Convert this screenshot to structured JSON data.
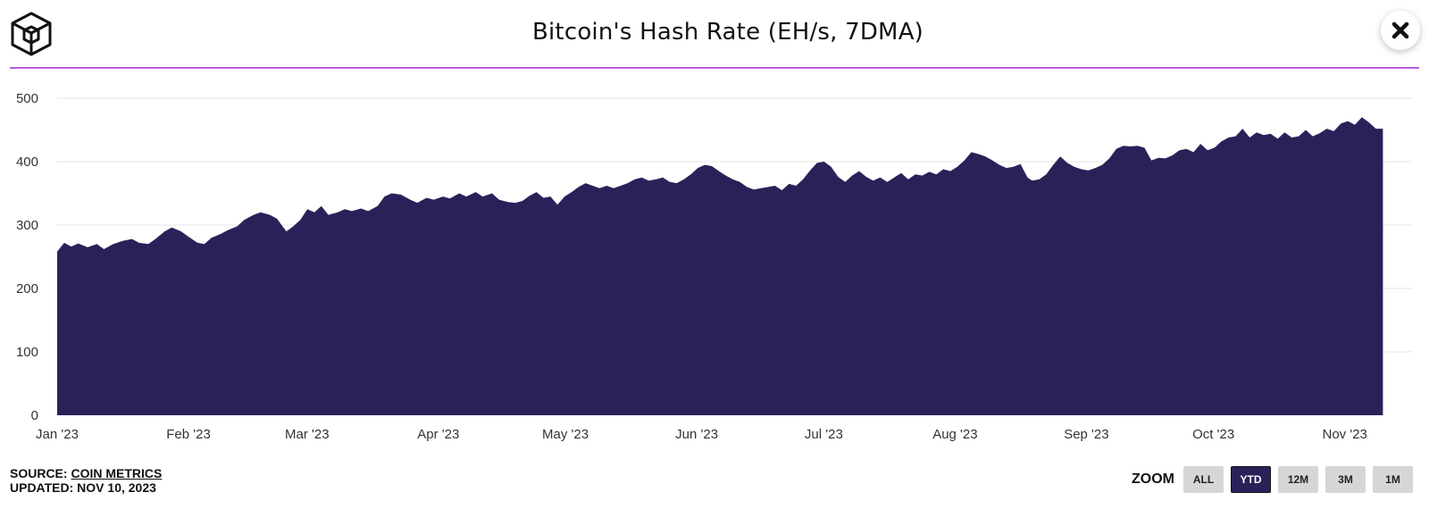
{
  "header": {
    "title": "Bitcoin's Hash Rate (EH/s, 7DMA)"
  },
  "footer": {
    "source_label": "SOURCE:",
    "source_name": "COIN METRICS",
    "updated": "UPDATED: NOV 10, 2023"
  },
  "zoom": {
    "label": "ZOOM",
    "buttons": [
      "ALL",
      "YTD",
      "12M",
      "3M",
      "1M"
    ],
    "active": "YTD"
  },
  "colors": {
    "area": "#2b2159",
    "rule": "#b85bd8",
    "grid": "#e6e6e6"
  },
  "chart_data": {
    "type": "area",
    "title": "Bitcoin's Hash Rate (EH/s, 7DMA)",
    "ylim": [
      0,
      500
    ],
    "yticks": [
      0,
      100,
      200,
      300,
      400,
      500
    ],
    "x_ticks": [
      "Jan '23",
      "Feb '23",
      "Mar '23",
      "Apr '23",
      "May '23",
      "Jun '23",
      "Jul '23",
      "Aug '23",
      "Sep '23",
      "Oct '23",
      "Nov '23"
    ],
    "grid": true,
    "series": [
      {
        "values": [
          [
            0,
            258
          ],
          [
            3,
            272
          ],
          [
            6,
            266
          ],
          [
            9,
            271
          ],
          [
            13,
            265
          ],
          [
            17,
            270
          ],
          [
            20,
            262
          ],
          [
            24,
            270
          ],
          [
            28,
            275
          ],
          [
            32,
            278
          ],
          [
            35,
            272
          ],
          [
            39,
            270
          ],
          [
            42,
            278
          ],
          [
            46,
            290
          ],
          [
            49,
            296
          ],
          [
            53,
            290
          ],
          [
            56,
            282
          ],
          [
            60,
            272
          ],
          [
            63,
            270
          ],
          [
            66,
            280
          ],
          [
            70,
            286
          ],
          [
            73,
            292
          ],
          [
            77,
            298
          ],
          [
            80,
            308
          ],
          [
            84,
            316
          ],
          [
            87,
            320
          ],
          [
            91,
            316
          ],
          [
            94,
            310
          ],
          [
            96,
            300
          ],
          [
            98,
            290
          ],
          [
            101,
            298
          ],
          [
            104,
            308
          ],
          [
            107,
            325
          ],
          [
            110,
            320
          ],
          [
            113,
            330
          ],
          [
            116,
            316
          ],
          [
            120,
            320
          ],
          [
            123,
            325
          ],
          [
            126,
            322
          ],
          [
            130,
            326
          ],
          [
            133,
            322
          ],
          [
            137,
            330
          ],
          [
            140,
            345
          ],
          [
            143,
            350
          ],
          [
            147,
            348
          ],
          [
            151,
            340
          ],
          [
            154,
            335
          ],
          [
            158,
            343
          ],
          [
            161,
            340
          ],
          [
            165,
            345
          ],
          [
            168,
            342
          ],
          [
            172,
            350
          ],
          [
            175,
            345
          ],
          [
            179,
            352
          ],
          [
            182,
            345
          ],
          [
            186,
            350
          ],
          [
            189,
            340
          ],
          [
            193,
            336
          ],
          [
            196,
            335
          ],
          [
            199,
            338
          ],
          [
            202,
            346
          ],
          [
            205,
            352
          ],
          [
            208,
            343
          ],
          [
            211,
            345
          ],
          [
            214,
            332
          ],
          [
            217,
            345
          ],
          [
            220,
            352
          ],
          [
            223,
            360
          ],
          [
            226,
            366
          ],
          [
            229,
            362
          ],
          [
            232,
            358
          ],
          [
            235,
            362
          ],
          [
            238,
            358
          ],
          [
            241,
            362
          ],
          [
            244,
            366
          ],
          [
            247,
            372
          ],
          [
            250,
            375
          ],
          [
            253,
            370
          ],
          [
            256,
            372
          ],
          [
            259,
            375
          ],
          [
            262,
            368
          ],
          [
            265,
            366
          ],
          [
            268,
            372
          ],
          [
            271,
            380
          ],
          [
            274,
            390
          ],
          [
            277,
            395
          ],
          [
            280,
            393
          ],
          [
            283,
            385
          ],
          [
            286,
            378
          ],
          [
            289,
            372
          ],
          [
            292,
            368
          ],
          [
            295,
            360
          ],
          [
            298,
            356
          ],
          [
            301,
            358
          ],
          [
            304,
            360
          ],
          [
            307,
            362
          ],
          [
            310,
            355
          ],
          [
            313,
            365
          ],
          [
            316,
            362
          ],
          [
            319,
            372
          ],
          [
            322,
            386
          ],
          [
            325,
            398
          ],
          [
            328,
            400
          ],
          [
            331,
            392
          ],
          [
            334,
            376
          ],
          [
            337,
            368
          ],
          [
            340,
            378
          ],
          [
            343,
            385
          ],
          [
            346,
            376
          ],
          [
            349,
            370
          ],
          [
            352,
            375
          ],
          [
            355,
            368
          ],
          [
            358,
            375
          ],
          [
            361,
            382
          ],
          [
            364,
            372
          ],
          [
            367,
            380
          ],
          [
            370,
            378
          ],
          [
            373,
            384
          ],
          [
            376,
            380
          ],
          [
            379,
            388
          ],
          [
            382,
            385
          ],
          [
            385,
            392
          ],
          [
            388,
            402
          ],
          [
            391,
            415
          ],
          [
            394,
            412
          ],
          [
            397,
            408
          ],
          [
            400,
            402
          ],
          [
            403,
            395
          ],
          [
            406,
            390
          ],
          [
            409,
            392
          ],
          [
            412,
            396
          ],
          [
            415,
            375
          ],
          [
            417,
            370
          ],
          [
            420,
            372
          ],
          [
            423,
            380
          ],
          [
            426,
            395
          ],
          [
            429,
            408
          ],
          [
            432,
            398
          ],
          [
            435,
            392
          ],
          [
            438,
            388
          ],
          [
            441,
            386
          ],
          [
            444,
            390
          ],
          [
            447,
            395
          ],
          [
            450,
            405
          ],
          [
            453,
            420
          ],
          [
            456,
            425
          ],
          [
            459,
            424
          ],
          [
            462,
            425
          ],
          [
            465,
            422
          ],
          [
            468,
            402
          ],
          [
            471,
            406
          ],
          [
            474,
            405
          ],
          [
            477,
            410
          ],
          [
            480,
            418
          ],
          [
            483,
            420
          ],
          [
            486,
            415
          ],
          [
            489,
            428
          ],
          [
            492,
            418
          ],
          [
            495,
            422
          ],
          [
            498,
            432
          ],
          [
            501,
            438
          ],
          [
            504,
            440
          ],
          [
            507,
            452
          ],
          [
            510,
            438
          ],
          [
            513,
            446
          ],
          [
            516,
            442
          ],
          [
            519,
            444
          ],
          [
            522,
            436
          ],
          [
            525,
            446
          ],
          [
            528,
            438
          ],
          [
            531,
            440
          ],
          [
            534,
            450
          ],
          [
            537,
            440
          ],
          [
            540,
            445
          ],
          [
            543,
            452
          ],
          [
            546,
            448
          ],
          [
            549,
            460
          ],
          [
            552,
            464
          ],
          [
            555,
            458
          ],
          [
            558,
            470
          ],
          [
            561,
            462
          ],
          [
            564,
            452
          ],
          [
            567,
            452
          ]
        ]
      }
    ],
    "x_units": "days since Jan 1, 2023",
    "x_range": [
      0,
      568
    ]
  }
}
